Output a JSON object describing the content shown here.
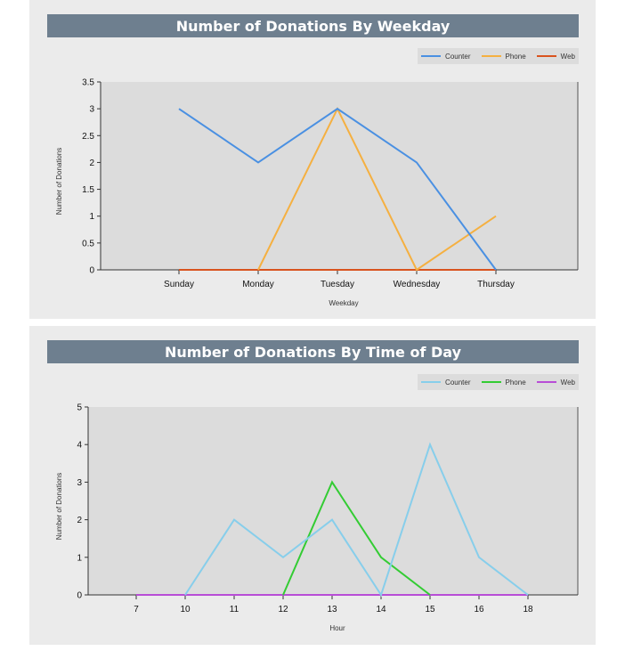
{
  "chart_data": [
    {
      "type": "line",
      "title": "Number of Donations By Weekday",
      "xlabel": "Weekday",
      "ylabel": "Number of Donations",
      "categories": [
        "Sunday",
        "Monday",
        "Tuesday",
        "Wednesday",
        "Thursday"
      ],
      "ylim": [
        0,
        3.5
      ],
      "yticks": [
        0,
        0.5,
        1,
        1.5,
        2,
        2.5,
        3,
        3.5
      ],
      "legend_position": "top-right",
      "grid": false,
      "series": [
        {
          "name": "Counter",
          "color": "#4a90e2",
          "values": [
            3,
            2,
            3,
            2,
            0
          ]
        },
        {
          "name": "Phone",
          "color": "#f5b041",
          "values": [
            null,
            0,
            3,
            0,
            1
          ]
        },
        {
          "name": "Web",
          "color": "#d9531e",
          "values": [
            0,
            0,
            0,
            0,
            0
          ]
        }
      ]
    },
    {
      "type": "line",
      "title": "Number of Donations By Time of Day",
      "xlabel": "Hour",
      "ylabel": "Number of Donations",
      "categories": [
        "7",
        "10",
        "11",
        "12",
        "13",
        "14",
        "15",
        "16",
        "18"
      ],
      "ylim": [
        0,
        5
      ],
      "yticks": [
        0,
        1,
        2,
        3,
        4,
        5
      ],
      "legend_position": "top-right",
      "grid": false,
      "series": [
        {
          "name": "Counter",
          "color": "#87ceeb",
          "values": [
            null,
            0,
            2,
            1,
            2,
            0,
            4,
            1,
            0
          ]
        },
        {
          "name": "Phone",
          "color": "#33cc33",
          "values": [
            null,
            null,
            null,
            0,
            3,
            1,
            0,
            null,
            null
          ]
        },
        {
          "name": "Web",
          "color": "#b84dd6",
          "values": [
            0,
            0,
            0,
            0,
            0,
            0,
            0,
            0,
            0
          ]
        }
      ]
    }
  ]
}
